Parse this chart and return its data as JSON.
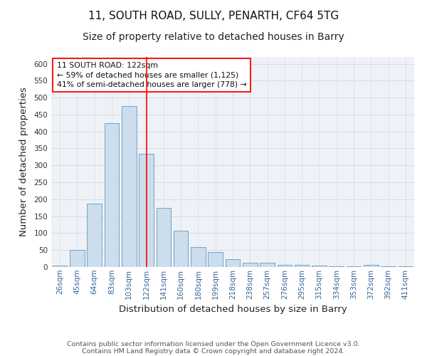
{
  "title_line1": "11, SOUTH ROAD, SULLY, PENARTH, CF64 5TG",
  "title_line2": "Size of property relative to detached houses in Barry",
  "xlabel": "Distribution of detached houses by size in Barry",
  "ylabel": "Number of detached properties",
  "bar_labels": [
    "26sqm",
    "45sqm",
    "64sqm",
    "83sqm",
    "103sqm",
    "122sqm",
    "141sqm",
    "160sqm",
    "180sqm",
    "199sqm",
    "218sqm",
    "238sqm",
    "257sqm",
    "276sqm",
    "295sqm",
    "315sqm",
    "334sqm",
    "353sqm",
    "372sqm",
    "392sqm",
    "411sqm"
  ],
  "bar_values": [
    5,
    51,
    187,
    424,
    476,
    335,
    174,
    108,
    59,
    44,
    23,
    12,
    13,
    6,
    6,
    4,
    2,
    2,
    6,
    2,
    3
  ],
  "bar_color": "#ccdded",
  "bar_edge_color": "#6699bb",
  "red_line_index": 5,
  "annotation_line1": "11 SOUTH ROAD: 122sqm",
  "annotation_line2": "← 59% of detached houses are smaller (1,125)",
  "annotation_line3": "41% of semi-detached houses are larger (778) →",
  "annotation_box_edge_color": "red",
  "ylim": [
    0,
    620
  ],
  "yticks": [
    0,
    50,
    100,
    150,
    200,
    250,
    300,
    350,
    400,
    450,
    500,
    550,
    600
  ],
  "grid_color": "#ccd9e8",
  "background_color": "#eef2f7",
  "footer_line1": "Contains HM Land Registry data © Crown copyright and database right 2024.",
  "footer_line2": "Contains public sector information licensed under the Open Government Licence v3.0.",
  "title_fontsize": 11,
  "subtitle_fontsize": 10,
  "axis_label_fontsize": 9.5,
  "tick_fontsize": 7.5,
  "annotation_fontsize": 7.8,
  "footer_fontsize": 6.8
}
